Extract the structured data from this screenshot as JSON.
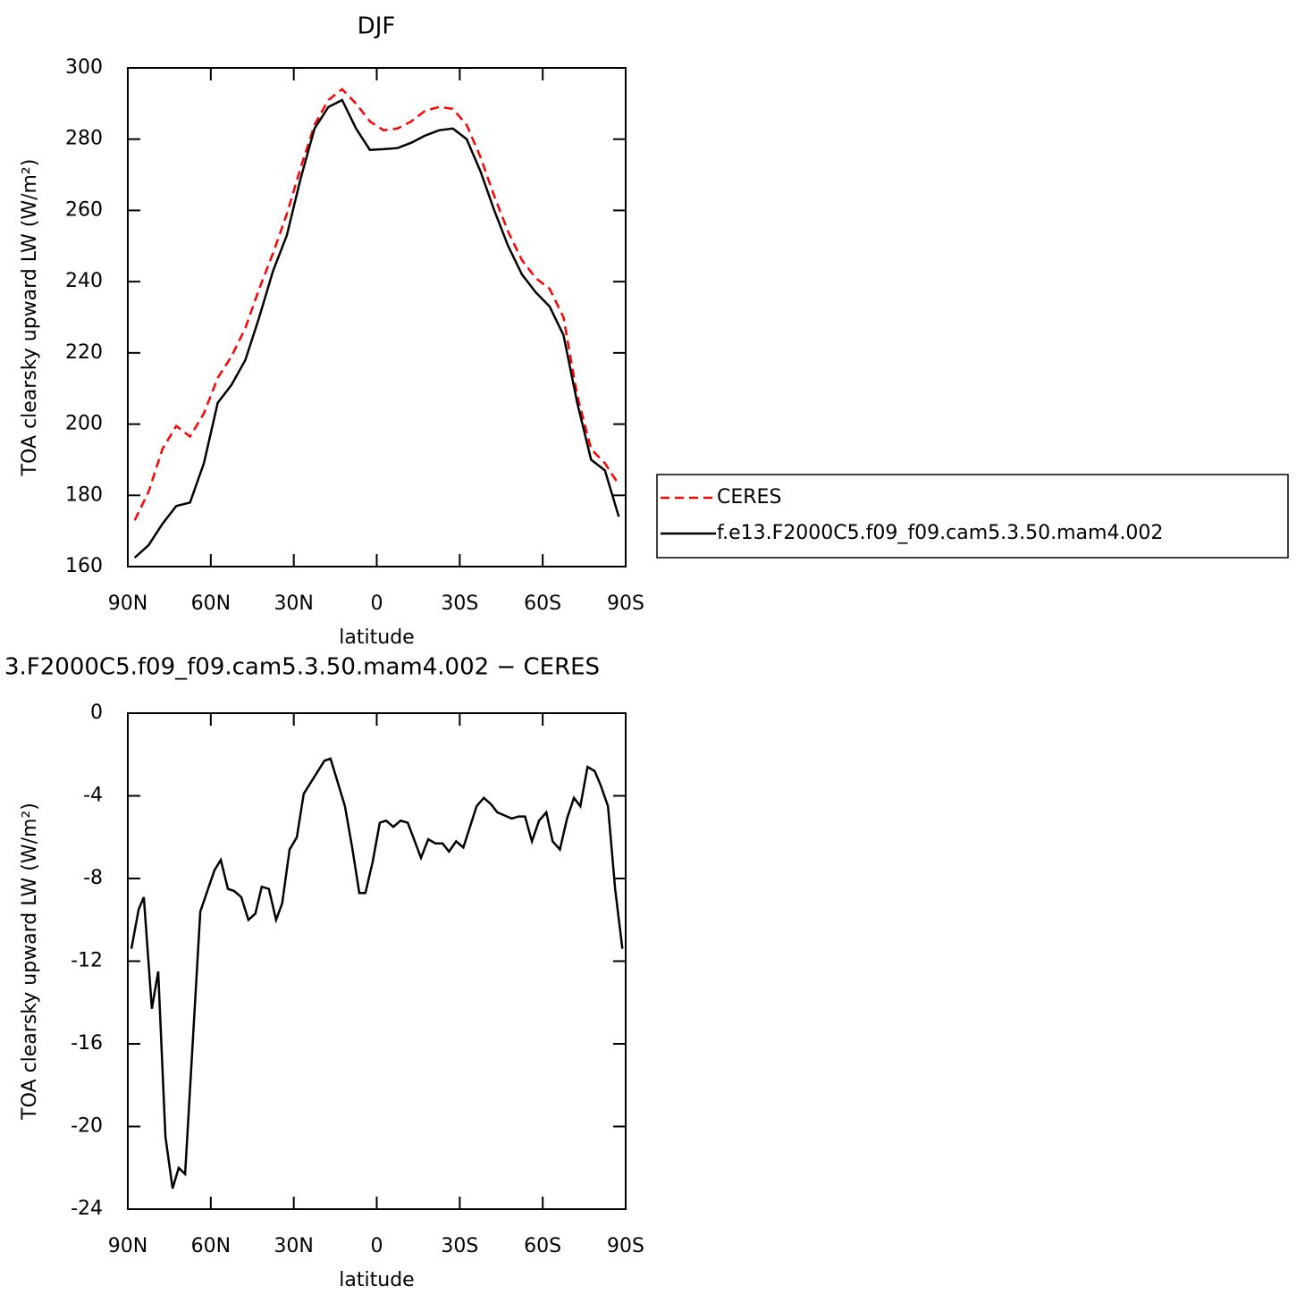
{
  "chart_data": [
    {
      "type": "line",
      "title": "DJF",
      "xlabel": "latitude",
      "ylabel": "TOA clearsky upward LW (W/m²)",
      "x": [
        87.5,
        82.5,
        77.5,
        72.5,
        67.5,
        62.5,
        57.5,
        52.5,
        47.5,
        42.5,
        37.5,
        32.5,
        27.5,
        22.5,
        17.5,
        12.5,
        7.5,
        2.5,
        -2.5,
        -7.5,
        -12.5,
        -17.5,
        -22.5,
        -27.5,
        -32.5,
        -37.5,
        -42.5,
        -47.5,
        -52.5,
        -57.5,
        -62.5,
        -67.5,
        -72.5,
        -77.5,
        -82.5,
        -87.5
      ],
      "series": [
        {
          "name": "CERES",
          "color": "#ff0000",
          "linestyle": "dashed",
          "values": [
            173,
            181,
            193,
            199.5,
            196.5,
            203,
            213,
            219,
            227,
            238,
            248,
            259,
            272,
            284,
            291,
            294,
            290,
            285,
            282.5,
            283,
            285,
            288,
            289,
            288.5,
            284,
            275,
            264,
            254,
            246,
            241,
            238,
            230,
            208,
            193,
            189,
            183
          ]
        },
        {
          "name": "f.e13.F2000C5.f09_f09.cam5.3.50.mam4.002",
          "color": "#000000",
          "linestyle": "solid",
          "values": [
            162.5,
            166,
            172,
            177,
            178,
            189,
            206,
            211,
            218,
            230,
            243,
            253,
            269,
            283,
            289,
            291,
            283,
            277,
            277.2,
            277.5,
            279,
            281,
            282.5,
            283,
            280,
            271,
            260,
            250,
            242,
            237,
            233,
            225,
            206,
            190,
            187,
            174
          ]
        }
      ],
      "xlim": [
        90,
        -90
      ],
      "xticks": [
        {
          "value": 90,
          "label": "90N"
        },
        {
          "value": 60,
          "label": "60N"
        },
        {
          "value": 30,
          "label": "30N"
        },
        0,
        {
          "value": -30,
          "label": "30S"
        },
        {
          "value": -60,
          "label": "60S"
        },
        {
          "value": -90,
          "label": "90S"
        }
      ],
      "ylim": [
        160,
        300
      ],
      "yticks": [
        160,
        180,
        200,
        220,
        240,
        260,
        280,
        300
      ],
      "legend": "right"
    },
    {
      "type": "line",
      "title": "3.F2000C5.f09_f09.cam5.3.50.mam4.002 − CERES",
      "xlabel": "latitude",
      "ylabel": "TOA clearsky upward LW (W/m²)",
      "x": [
        88.7,
        86.1,
        84.2,
        81.3,
        79.0,
        76.4,
        73.8,
        71.6,
        69.3,
        63.8,
        58.7,
        56.4,
        53.8,
        51.6,
        49.0,
        46.4,
        43.9,
        41.6,
        39.0,
        36.4,
        34.2,
        31.5,
        28.9,
        26.4,
        18.9,
        16.7,
        11.5,
        8.9,
        6.3,
        4.1,
        1.5,
        -1.1,
        -3.4,
        -6.0,
        -8.6,
        -11.2,
        -16.0,
        -18.6,
        -21.2,
        -23.8,
        -26.1,
        -28.7,
        -31.3,
        -36.1,
        -38.7,
        -41.3,
        -43.6,
        -48.8,
        -51.3,
        -53.6,
        -56.1,
        -58.7,
        -61.3,
        -63.6,
        -66.2,
        -68.8,
        -71.3,
        -73.6,
        -76.2,
        -78.8,
        -81.0,
        -83.6,
        -86.2,
        -88.8
      ],
      "values": [
        -11.4,
        -9.5,
        -8.9,
        -14.3,
        -12.5,
        -20.5,
        -23,
        -22,
        -22.3,
        -9.6,
        -7.6,
        -7.1,
        -8.5,
        -8.6,
        -8.9,
        -10,
        -9.7,
        -8.4,
        -8.5,
        -10,
        -9.2,
        -6.6,
        -6,
        -3.9,
        -2.3,
        -2.2,
        -4.5,
        -6.5,
        -8.7,
        -8.7,
        -7.2,
        -5.3,
        -5.2,
        -5.5,
        -5.2,
        -5.3,
        -7,
        -6.1,
        -6.3,
        -6.3,
        -6.7,
        -6.2,
        -6.5,
        -4.5,
        -4.1,
        -4.4,
        -4.8,
        -5.1,
        -5,
        -5,
        -6.2,
        -5.2,
        -4.8,
        -6.2,
        -6.6,
        -5.1,
        -4.1,
        -4.5,
        -2.6,
        -2.8,
        -3.5,
        -4.5,
        -8.5,
        -11.4
      ],
      "color": "#000000",
      "xlim": [
        90,
        -90
      ],
      "xticks": [
        {
          "value": 90,
          "label": "90N"
        },
        {
          "value": 60,
          "label": "60N"
        },
        {
          "value": 30,
          "label": "30N"
        },
        0,
        {
          "value": -30,
          "label": "30S"
        },
        {
          "value": -60,
          "label": "60S"
        },
        {
          "value": -90,
          "label": "90S"
        }
      ],
      "ylim": [
        -24,
        0
      ],
      "yticks": [
        -24,
        -20,
        -16,
        -12,
        -8,
        -4,
        0
      ]
    }
  ]
}
